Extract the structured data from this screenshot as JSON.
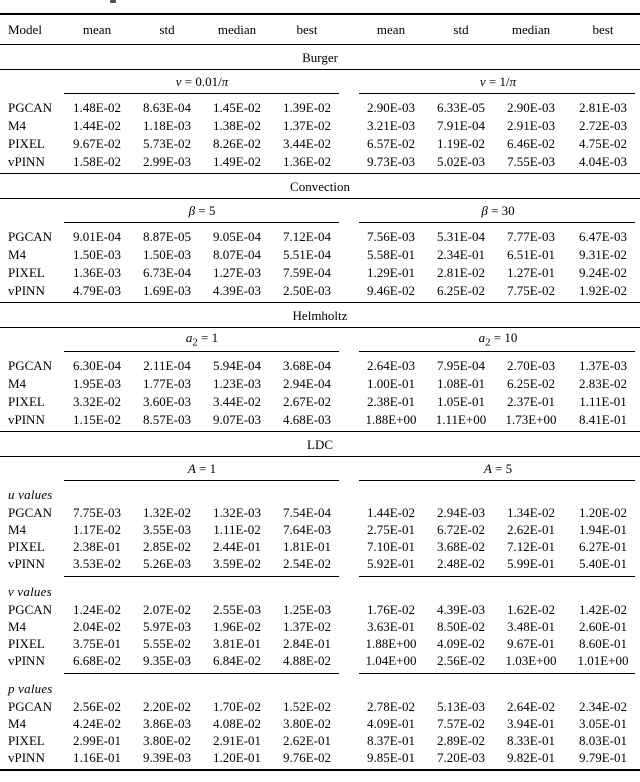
{
  "table": {
    "header": [
      "Model",
      "mean",
      "std",
      "median",
      "best",
      "mean",
      "std",
      "median",
      "best"
    ],
    "sections": [
      {
        "title": "Burger",
        "groups": [
          {
            "var": "ν",
            "sub": "",
            "rhs": "0.01/π"
          },
          {
            "var": "ν",
            "sub": "",
            "rhs": "1/π"
          }
        ],
        "blocks": [
          {
            "label": "",
            "rows": [
              {
                "model": "PGCAN",
                "values": [
                  "1.48E-02",
                  "8.63E-04",
                  "1.45E-02",
                  "1.39E-02",
                  "2.90E-03",
                  "6.33E-05",
                  "2.90E-03",
                  "2.81E-03"
                ]
              },
              {
                "model": "M4",
                "values": [
                  "1.44E-02",
                  "1.18E-03",
                  "1.38E-02",
                  "1.37E-02",
                  "3.21E-03",
                  "7.91E-04",
                  "2.91E-03",
                  "2.72E-03"
                ]
              },
              {
                "model": "PIXEL",
                "values": [
                  "9.67E-02",
                  "5.73E-02",
                  "8.26E-02",
                  "3.44E-02",
                  "6.57E-02",
                  "1.19E-02",
                  "6.46E-02",
                  "4.75E-02"
                ]
              },
              {
                "model": "vPINN",
                "values": [
                  "1.58E-02",
                  "2.99E-03",
                  "1.49E-02",
                  "1.36E-02",
                  "9.73E-03",
                  "5.02E-03",
                  "7.55E-03",
                  "4.04E-03"
                ]
              }
            ]
          }
        ]
      },
      {
        "title": "Convection",
        "groups": [
          {
            "var": "β",
            "sub": "",
            "rhs": "5"
          },
          {
            "var": "β",
            "sub": "",
            "rhs": "30"
          }
        ],
        "blocks": [
          {
            "label": "",
            "rows": [
              {
                "model": "PGCAN",
                "values": [
                  "9.01E-04",
                  "8.87E-05",
                  "9.05E-04",
                  "7.12E-04",
                  "7.56E-03",
                  "5.31E-04",
                  "7.77E-03",
                  "6.47E-03"
                ]
              },
              {
                "model": "M4",
                "values": [
                  "1.50E-03",
                  "1.50E-03",
                  "8.07E-04",
                  "5.51E-04",
                  "5.58E-01",
                  "2.34E-01",
                  "6.51E-01",
                  "9.31E-02"
                ]
              },
              {
                "model": "PIXEL",
                "values": [
                  "1.36E-03",
                  "6.73E-04",
                  "1.27E-03",
                  "7.59E-04",
                  "1.29E-01",
                  "2.81E-02",
                  "1.27E-01",
                  "9.24E-02"
                ]
              },
              {
                "model": "vPINN",
                "values": [
                  "4.79E-03",
                  "1.69E-03",
                  "4.39E-03",
                  "2.50E-03",
                  "9.46E-02",
                  "6.25E-02",
                  "7.75E-02",
                  "1.92E-02"
                ]
              }
            ]
          }
        ]
      },
      {
        "title": "Helmholtz",
        "groups": [
          {
            "var": "a",
            "sub": "2",
            "rhs": "1"
          },
          {
            "var": "a",
            "sub": "2",
            "rhs": "10"
          }
        ],
        "blocks": [
          {
            "label": "",
            "rows": [
              {
                "model": "PGCAN",
                "values": [
                  "6.30E-04",
                  "2.11E-04",
                  "5.94E-04",
                  "3.68E-04",
                  "2.64E-03",
                  "7.95E-04",
                  "2.70E-03",
                  "1.37E-03"
                ]
              },
              {
                "model": "M4",
                "values": [
                  "1.95E-03",
                  "1.77E-03",
                  "1.23E-03",
                  "2.94E-04",
                  "1.00E-01",
                  "1.08E-01",
                  "6.25E-02",
                  "2.83E-02"
                ]
              },
              {
                "model": "PIXEL",
                "values": [
                  "3.32E-02",
                  "3.60E-03",
                  "3.44E-02",
                  "2.67E-02",
                  "2.38E-01",
                  "1.05E-01",
                  "2.37E-01",
                  "1.11E-01"
                ]
              },
              {
                "model": "vPINN",
                "values": [
                  "1.15E-02",
                  "8.57E-03",
                  "9.07E-03",
                  "4.68E-03",
                  "1.88E+00",
                  "1.11E+00",
                  "1.73E+00",
                  "8.41E-01"
                ]
              }
            ]
          }
        ]
      },
      {
        "title": "LDC",
        "groups": [
          {
            "var": "A",
            "sub": "",
            "rhs": "1"
          },
          {
            "var": "A",
            "sub": "",
            "rhs": "5"
          }
        ],
        "blocks": [
          {
            "label": "u values",
            "rows": [
              {
                "model": "PGCAN",
                "values": [
                  "7.75E-03",
                  "1.32E-02",
                  "1.32E-03",
                  "7.54E-04",
                  "1.44E-02",
                  "2.94E-03",
                  "1.34E-02",
                  "1.20E-02"
                ]
              },
              {
                "model": "M4",
                "values": [
                  "1.17E-02",
                  "3.55E-03",
                  "1.11E-02",
                  "7.64E-03",
                  "2.75E-01",
                  "6.72E-02",
                  "2.62E-01",
                  "1.94E-01"
                ]
              },
              {
                "model": "PIXEL",
                "values": [
                  "2.38E-01",
                  "2.85E-02",
                  "2.44E-01",
                  "1.81E-01",
                  "7.10E-01",
                  "3.68E-02",
                  "7.12E-01",
                  "6.27E-01"
                ]
              },
              {
                "model": "vPINN",
                "values": [
                  "3.53E-02",
                  "5.26E-03",
                  "3.59E-02",
                  "2.54E-02",
                  "5.92E-01",
                  "2.48E-02",
                  "5.99E-01",
                  "5.40E-01"
                ]
              }
            ]
          },
          {
            "label": "v values",
            "rows": [
              {
                "model": "PGCAN",
                "values": [
                  "1.24E-02",
                  "2.07E-02",
                  "2.55E-03",
                  "1.25E-03",
                  "1.76E-02",
                  "4.39E-03",
                  "1.62E-02",
                  "1.42E-02"
                ]
              },
              {
                "model": "M4",
                "values": [
                  "2.04E-02",
                  "5.97E-03",
                  "1.96E-02",
                  "1.37E-02",
                  "3.63E-01",
                  "8.50E-02",
                  "3.48E-01",
                  "2.60E-01"
                ]
              },
              {
                "model": "PIXEL",
                "values": [
                  "3.75E-01",
                  "5.55E-02",
                  "3.81E-01",
                  "2.84E-01",
                  "1.88E+00",
                  "4.09E-02",
                  "9.67E-01",
                  "8.60E-01"
                ]
              },
              {
                "model": "vPINN",
                "values": [
                  "6.68E-02",
                  "9.35E-03",
                  "6.84E-02",
                  "4.88E-02",
                  "1.04E+00",
                  "2.56E-02",
                  "1.03E+00",
                  "1.01E+00"
                ]
              }
            ]
          },
          {
            "label": "p values",
            "rows": [
              {
                "model": "PGCAN",
                "values": [
                  "2.56E-02",
                  "2.20E-02",
                  "1.70E-02",
                  "1.52E-02",
                  "2.78E-02",
                  "5.13E-03",
                  "2.64E-02",
                  "2.34E-02"
                ]
              },
              {
                "model": "M4",
                "values": [
                  "4.24E-02",
                  "3.86E-03",
                  "4.08E-02",
                  "3.80E-02",
                  "4.09E-01",
                  "7.57E-02",
                  "3.94E-01",
                  "3.05E-01"
                ]
              },
              {
                "model": "PIXEL",
                "values": [
                  "2.99E-01",
                  "3.80E-02",
                  "2.91E-01",
                  "2.62E-01",
                  "8.37E-01",
                  "2.89E-02",
                  "8.33E-01",
                  "8.03E-01"
                ]
              },
              {
                "model": "vPINN",
                "values": [
                  "1.16E-01",
                  "9.39E-03",
                  "1.20E-01",
                  "9.76E-02",
                  "9.85E-01",
                  "7.20E-03",
                  "9.82E-01",
                  "9.79E-01"
                ]
              }
            ]
          }
        ]
      }
    ]
  }
}
